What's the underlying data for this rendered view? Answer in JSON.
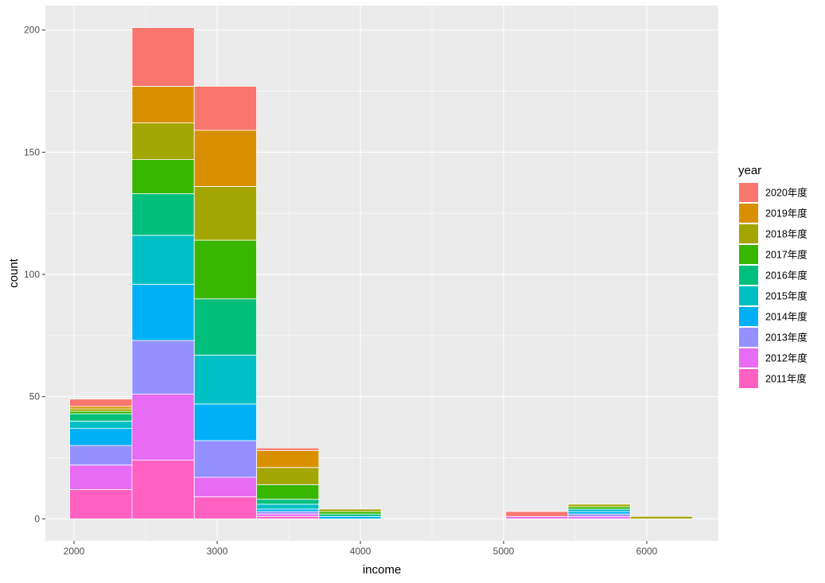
{
  "chart_data": {
    "type": "bar",
    "stacked": true,
    "xlabel": "income",
    "ylabel": "count",
    "xlim": [
      1800,
      6500
    ],
    "ylim": [
      -9,
      210
    ],
    "x_ticks": [
      "2000",
      "3000",
      "4000",
      "5000",
      "6000"
    ],
    "y_ticks": [
      "0",
      "50",
      "100",
      "150",
      "200"
    ],
    "bins": [
      {
        "x0": 1970,
        "x1": 2405
      },
      {
        "x0": 2405,
        "x1": 2840
      },
      {
        "x0": 2840,
        "x1": 3275
      },
      {
        "x0": 3275,
        "x1": 3710
      },
      {
        "x0": 3710,
        "x1": 4145
      },
      {
        "x0": 4145,
        "x1": 4580
      },
      {
        "x0": 4580,
        "x1": 5015
      },
      {
        "x0": 5015,
        "x1": 5450
      },
      {
        "x0": 5450,
        "x1": 5885
      },
      {
        "x0": 5885,
        "x1": 6320
      }
    ],
    "legend_title": "year",
    "legend_position": "right",
    "grid": true,
    "background": "#ebebeb",
    "series": [
      {
        "name": "2011年度",
        "color": "#FF61C3",
        "values": [
          12,
          24,
          9,
          1,
          0,
          0,
          0,
          0,
          0,
          0
        ]
      },
      {
        "name": "2012年度",
        "color": "#E76BF3",
        "values": [
          10,
          27,
          8,
          1,
          0,
          0,
          0,
          1,
          1,
          0
        ]
      },
      {
        "name": "2013年度",
        "color": "#9590FF",
        "values": [
          8,
          22,
          15,
          1,
          0,
          0,
          0,
          0,
          1,
          0
        ]
      },
      {
        "name": "2014年度",
        "color": "#00B0F6",
        "values": [
          7,
          23,
          15,
          1,
          1,
          0,
          0,
          0,
          1,
          0
        ]
      },
      {
        "name": "2015年度",
        "color": "#00BFC4",
        "values": [
          3,
          20,
          20,
          2,
          0,
          0,
          0,
          0,
          1,
          0
        ]
      },
      {
        "name": "2016年度",
        "color": "#00BF7D",
        "values": [
          3,
          17,
          23,
          2,
          1,
          0,
          0,
          0,
          0,
          0
        ]
      },
      {
        "name": "2017年度",
        "color": "#39B600",
        "values": [
          1,
          14,
          24,
          6,
          1,
          0,
          0,
          0,
          1,
          0
        ]
      },
      {
        "name": "2018年度",
        "color": "#A3A500",
        "values": [
          1,
          15,
          22,
          7,
          1,
          0,
          0,
          0,
          1,
          1
        ]
      },
      {
        "name": "2019年度",
        "color": "#D89000",
        "values": [
          1,
          15,
          23,
          7,
          0,
          0,
          0,
          0,
          0,
          0
        ]
      },
      {
        "name": "2020年度",
        "color": "#F8766D",
        "values": [
          3,
          24,
          18,
          1,
          0,
          0,
          0,
          2,
          0,
          0
        ]
      }
    ]
  }
}
